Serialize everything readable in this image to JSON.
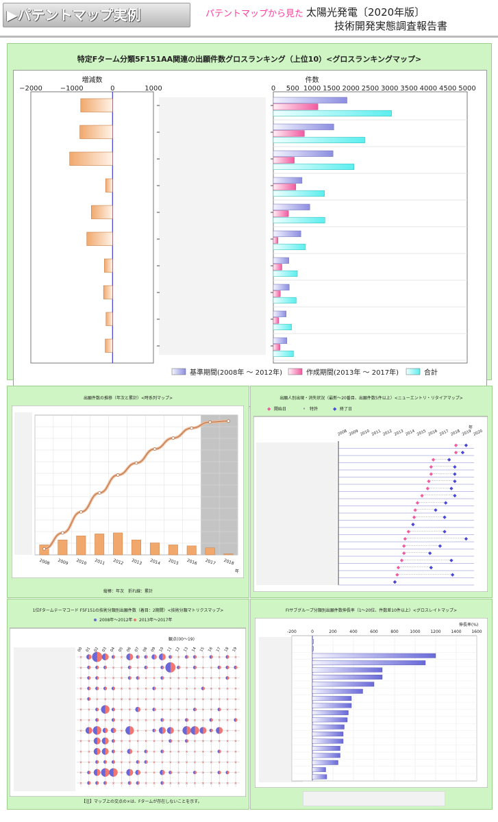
{
  "header": {
    "tab_label": "▶パテントマップ実例",
    "subtitle": "パテントマップから見た",
    "title_line1": "太陽光発電〔2020年版〕",
    "title_line2": "技術開発実態調査報告書"
  },
  "colors": {
    "base": "#8c8ee0",
    "created": "#f25aa0",
    "total": "#5ceeee",
    "change": "#f0a86c",
    "panel": "#d0f5c4"
  },
  "chart_data": [
    {
      "type": "bar",
      "title": "特定Fターム分類5F151AA関連の出願件数グロスランキング（上位10）<グロスランキングマップ>",
      "left_axis": {
        "label": "増減数",
        "ticks": [
          "−2000",
          "−1000",
          "0",
          "1000"
        ],
        "xlim": [
          -2000,
          1000
        ]
      },
      "right_axis": {
        "label": "件数",
        "ticks": [
          "0",
          "500",
          "1000",
          "1500",
          "2000",
          "2500",
          "3000",
          "3500",
          "4000",
          "4500",
          "5000"
        ],
        "xlim": [
          0,
          5000
        ]
      },
      "change": [
        -780,
        -800,
        -1050,
        -170,
        -520,
        -630,
        -200,
        -220,
        -160,
        -180
      ],
      "series": [
        {
          "name": "基準期間(2008年 ～ 2012年)",
          "values": [
            1900,
            1560,
            1540,
            740,
            940,
            710,
            400,
            410,
            330,
            350
          ]
        },
        {
          "name": "作成期間(2013年 ～ 2017年)",
          "values": [
            1150,
            800,
            540,
            580,
            390,
            120,
            220,
            180,
            140,
            170
          ]
        },
        {
          "name": "合計",
          "values": [
            3050,
            2360,
            2080,
            1320,
            1330,
            830,
            620,
            590,
            470,
            520
          ]
        }
      ]
    },
    {
      "type": "line",
      "title": "出願件数の推移（年次と累計）<時系列マップ>",
      "x": [
        "2008",
        "2009",
        "2010",
        "2011",
        "2012",
        "2013",
        "2014",
        "2015",
        "2016",
        "2017",
        "2018"
      ],
      "x_suffix": "年",
      "bars": [
        0.1,
        0.15,
        0.19,
        0.21,
        0.22,
        0.15,
        0.12,
        0.1,
        0.09,
        0.07,
        0.01
      ],
      "cumulative": [
        0.06,
        0.22,
        0.43,
        0.62,
        0.8,
        0.92,
        1.06,
        1.17,
        1.27,
        1.33,
        1.34
      ],
      "note": "縦棒：年次　折れ線：累計"
    },
    {
      "type": "scatter",
      "title": "出願人別出現・消失状況（最新～20番目、出願件数5件以上）<ニューエントリ・リタイアマップ>",
      "legend": [
        "開始日",
        "特許",
        "終了日"
      ],
      "x_ticks": [
        "2008",
        "2009",
        "2010",
        "2011",
        "2012",
        "2013",
        "2014",
        "2015",
        "2016",
        "2017",
        "2018",
        "2019",
        "2020"
      ],
      "x_suffix": "年",
      "rows": [
        {
          "start": 2018.4,
          "end": 2019.3
        },
        {
          "start": 2018.4,
          "end": 2019.0
        },
        {
          "start": 2016.4,
          "end": 2017.8
        },
        {
          "start": 2016.2,
          "end": 2018.3
        },
        {
          "start": 2016.2,
          "end": 2018.3
        },
        {
          "start": 2016.0,
          "end": 2018.3
        },
        {
          "start": 2015.9,
          "end": 2018.0
        },
        {
          "start": 2015.4,
          "end": 2018.3
        },
        {
          "start": 2015.0,
          "end": 2017.5
        },
        {
          "start": 2014.8,
          "end": 2016.6
        },
        {
          "start": 2014.7,
          "end": 2017.4
        },
        {
          "start": 2014.6,
          "end": 2014.6
        },
        {
          "start": 2014.2,
          "end": 2017.4
        },
        {
          "start": 2013.9,
          "end": 2019.3
        },
        {
          "start": 2013.8,
          "end": 2017.0
        },
        {
          "start": 2013.8,
          "end": 2016.1
        },
        {
          "start": 2013.6,
          "end": 2018.0
        },
        {
          "start": 2013.3,
          "end": 2016.2
        },
        {
          "start": 2013.2,
          "end": 2018.1
        },
        {
          "start": 2013.0,
          "end": 2013.0
        }
      ]
    },
    {
      "type": "scatter",
      "title": "1位Fタームテーマコード F5F151の技術分類別出願件数（着目：2期間）<技術分類マトリクスマップ>",
      "legend": [
        "2008年～2012年",
        "2013年～2017年"
      ],
      "axis_label": "観点(00～19)",
      "columns": [
        "00",
        "01",
        "02",
        "03",
        "04",
        "05",
        "06",
        "07",
        "08",
        "09",
        "10",
        "11",
        "12",
        "13",
        "14",
        "15",
        "16",
        "17",
        "18",
        "19"
      ],
      "rows": [
        [
          0,
          2,
          5,
          3,
          1,
          0,
          3,
          1,
          1,
          2,
          3,
          1,
          0,
          1,
          1,
          0,
          1,
          0,
          1,
          0
        ],
        [
          0,
          1,
          1,
          1,
          0,
          0,
          1,
          0,
          1,
          0,
          1,
          5,
          1,
          0,
          1,
          0,
          0,
          1,
          1,
          1
        ],
        [
          0,
          1,
          1,
          0,
          0,
          0,
          1,
          1,
          0,
          0,
          1,
          0,
          0,
          0,
          0,
          0,
          0,
          0,
          1,
          0
        ],
        [
          0,
          1,
          1,
          1,
          1,
          0,
          0,
          0,
          0,
          1,
          0,
          0,
          0,
          0,
          0,
          1,
          0,
          0,
          0,
          0
        ],
        [
          0,
          1,
          0,
          0,
          0,
          0,
          0,
          0,
          0,
          0,
          0,
          0,
          0,
          0,
          0,
          0,
          0,
          0,
          0,
          0
        ],
        [
          0,
          0,
          1,
          4,
          1,
          0,
          0,
          2,
          0,
          1,
          0,
          0,
          0,
          0,
          1,
          0,
          0,
          1,
          0,
          0
        ],
        [
          0,
          0,
          1,
          0,
          1,
          0,
          0,
          0,
          0,
          0,
          1,
          0,
          0,
          1,
          0,
          0,
          1,
          0,
          0,
          1
        ],
        [
          0,
          3,
          4,
          2,
          2,
          0,
          4,
          0,
          0,
          1,
          3,
          3,
          0,
          4,
          4,
          3,
          1,
          3,
          0,
          0
        ],
        [
          0,
          0,
          3,
          3,
          1,
          0,
          0,
          0,
          0,
          0,
          0,
          1,
          0,
          1,
          0,
          0,
          0,
          0,
          0,
          0
        ],
        [
          0,
          0,
          3,
          3,
          1,
          0,
          2,
          0,
          1,
          0,
          1,
          0,
          0,
          0,
          0,
          0,
          0,
          1,
          0,
          0
        ],
        [
          0,
          0,
          1,
          1,
          1,
          0,
          0,
          1,
          1,
          0,
          0,
          0,
          0,
          0,
          0,
          0,
          0,
          0,
          0,
          0
        ],
        [
          0,
          1,
          3,
          4,
          4,
          0,
          3,
          2,
          0,
          0,
          2,
          1,
          0,
          0,
          1,
          0,
          0,
          1,
          1,
          0
        ],
        [
          0,
          1,
          1,
          1,
          0,
          0,
          1,
          1,
          0,
          0,
          1,
          0,
          0,
          0,
          0,
          0,
          0,
          0,
          0,
          0
        ]
      ],
      "footnote": "【注】マップ上の交点の×は、Fタームが存在しないことを示す。"
    },
    {
      "type": "bar",
      "title": "FIサブグループ分類別出願件数伸長率（1～20位、件数差10件以上）<グロスレイトマップ>",
      "axis_label": "伸長率(%)",
      "x_ticks": [
        "-200",
        "0",
        "200",
        "400",
        "600",
        "800",
        "1000",
        "1200",
        "1400",
        "1600"
      ],
      "xlim": [
        -200,
        1600
      ],
      "values": [
        10,
        10,
        1200,
        1100,
        680,
        680,
        600,
        490,
        380,
        380,
        350,
        340,
        310,
        300,
        300,
        270,
        270,
        250,
        130,
        140
      ]
    }
  ]
}
